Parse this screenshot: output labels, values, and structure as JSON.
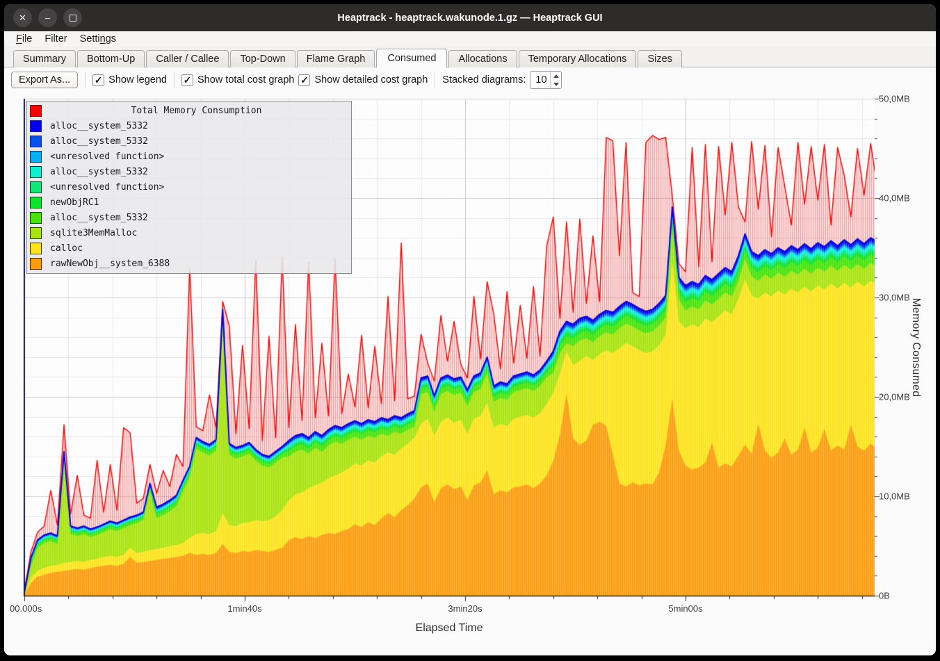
{
  "window": {
    "title": "Heaptrack - heaptrack.wakunode.1.gz — Heaptrack GUI",
    "buttons": [
      {
        "name": "close",
        "glyph": "✕"
      },
      {
        "name": "minimize",
        "glyph": "–"
      },
      {
        "name": "maximize",
        "glyph": ""
      }
    ]
  },
  "menu": {
    "items": [
      {
        "pre": "",
        "u": "F",
        "rest": "ile"
      },
      {
        "pre": "Filter",
        "u": "",
        "rest": ""
      },
      {
        "pre": "Setti",
        "u": "n",
        "rest": "gs"
      }
    ]
  },
  "tabs": {
    "items": [
      "Summary",
      "Bottom-Up",
      "Caller / Callee",
      "Top-Down",
      "Flame Graph",
      "Consumed",
      "Allocations",
      "Temporary Allocations",
      "Sizes"
    ],
    "active": "Consumed"
  },
  "toolbar": {
    "export_label": "Export As...",
    "checkboxes": [
      {
        "label": "Show legend",
        "checked": true,
        "glyph": "✓"
      },
      {
        "label": "Show total cost graph",
        "checked": true,
        "glyph": "✓"
      },
      {
        "label": "Show detailed cost graph",
        "checked": true,
        "glyph": "✓"
      }
    ],
    "stacked_label": "Stacked diagrams:",
    "stacked_value": "10"
  },
  "chart_data": {
    "type": "area",
    "title": "Total Memory Consumption",
    "xlabel": "Elapsed Time",
    "ylabel": "Memory Consumed",
    "ylim_mb": [
      0,
      50
    ],
    "x_step_s": 3,
    "x_range_s": [
      0,
      390
    ],
    "grid": {
      "x_minor_s": 20,
      "x_major_s": 100,
      "y_minor_mb": 2,
      "y_major_mb": 10
    },
    "legend_position": "top-left",
    "y_ticks": [
      {
        "label": "50,0MB",
        "mb": 50
      },
      {
        "label": "40,0MB",
        "mb": 40
      },
      {
        "label": "30,0MB",
        "mb": 30
      },
      {
        "label": "20,0MB",
        "mb": 20
      },
      {
        "label": "10,0MB",
        "mb": 10
      },
      {
        "label": "0B",
        "mb": 0
      }
    ],
    "x_ticks": [
      {
        "label": "00.000s",
        "s": 0
      },
      {
        "label": "1min40s",
        "s": 100
      },
      {
        "label": "3min20s",
        "s": 200
      },
      {
        "label": "5min00s",
        "s": 300
      }
    ],
    "stack_top_mb": [
      0.3,
      3.8,
      5.6,
      6.1,
      6.3,
      6.0,
      14.5,
      7.0,
      6.8,
      7.0,
      6.7,
      6.9,
      7.2,
      7.5,
      7.3,
      7.6,
      7.9,
      8.1,
      8.4,
      11.3,
      8.9,
      9.2,
      9.6,
      10.1,
      11.6,
      13.0,
      15.9,
      15.5,
      15.2,
      15.7,
      28.8,
      15.3,
      14.9,
      15.1,
      15.4,
      14.7,
      14.2,
      14.0,
      14.5,
      15.0,
      15.6,
      16.1,
      16.3,
      15.9,
      16.5,
      16.1,
      16.7,
      17.1,
      16.9,
      17.3,
      17.6,
      17.3,
      17.7,
      17.5,
      17.9,
      17.7,
      18.1,
      17.9,
      18.3,
      18.6,
      21.9,
      22.1,
      20.1,
      21.9,
      22.2,
      21.8,
      22.0,
      20.7,
      22.1,
      22.4,
      24.0,
      21.1,
      21.5,
      21.3,
      22.1,
      22.3,
      22.5,
      22.2,
      22.7,
      23.6,
      24.6,
      26.6,
      27.6,
      27.3,
      27.9,
      28.1,
      27.7,
      28.3,
      28.7,
      28.5,
      29.1,
      29.6,
      29.3,
      28.9,
      28.6,
      28.8,
      29.4,
      30.2,
      39.1,
      32.0,
      31.2,
      31.6,
      31.3,
      32.2,
      31.8,
      32.4,
      33.0,
      32.6,
      34.2,
      36.4,
      34.6,
      34.2,
      34.8,
      34.4,
      35.0,
      34.6,
      35.2,
      34.8,
      35.4,
      34.9,
      35.5,
      35.1,
      35.7,
      35.2,
      35.8,
      35.3,
      35.9,
      35.4,
      36.0,
      35.6,
      36.2
    ],
    "series": [
      {
        "name": "Total Memory Consumption",
        "color": "#ff0000",
        "type": "total_line",
        "values_mb": [
          0.5,
          4.4,
          6.4,
          7.0,
          10.6,
          7.1,
          17.2,
          8.2,
          12.1,
          8.1,
          7.8,
          13.6,
          8.4,
          13.2,
          8.6,
          16.9,
          16.4,
          9.3,
          9.8,
          13.2,
          10.3,
          12.6,
          11.0,
          14.2,
          13.0,
          33.0,
          17.0,
          16.6,
          20.2,
          16.9,
          29.6,
          27.1,
          16.3,
          25.2,
          16.8,
          33.8,
          15.6,
          26.1,
          15.9,
          34.1,
          16.9,
          27.3,
          17.6,
          33.6,
          17.9,
          25.4,
          18.1,
          33.9,
          18.3,
          22.3,
          19.0,
          26.2,
          18.9,
          25.1,
          19.3,
          30.1,
          19.6,
          35.5,
          19.8,
          20.1,
          26.3,
          23.4,
          21.6,
          28.2,
          23.6,
          27.6,
          23.3,
          21.9,
          30.1,
          23.8,
          31.6,
          28.3,
          22.8,
          30.6,
          23.4,
          29.2,
          23.9,
          31.1,
          24.1,
          35.2,
          38.1,
          27.9,
          37.6,
          28.5,
          37.9,
          29.4,
          36.2,
          29.6,
          46.1,
          45.8,
          34.2,
          45.6,
          30.5,
          30.1,
          45.6,
          46.3,
          45.9,
          46.1,
          40.2,
          33.4,
          32.6,
          45.1,
          33.1,
          45.4,
          33.6,
          45.2,
          38.3,
          45.6,
          39.1,
          37.6,
          45.7,
          38.9,
          45.3,
          36.1,
          45.1,
          41.2,
          37.3,
          45.6,
          39.4,
          45.2,
          39.8,
          45.4,
          37.3,
          45.1,
          42.3,
          38.1,
          45.0,
          40.3,
          45.5,
          41.1,
          45.7
        ]
      },
      {
        "name": "alloc__system_5332",
        "color": "#0000ee",
        "type": "stacked",
        "share_of_upper_band": 0.12
      },
      {
        "name": "alloc__system_5332",
        "color": "#0550f0",
        "type": "stacked",
        "share_of_upper_band": 0.08
      },
      {
        "name": "<unresolved function>",
        "color": "#0aaef5",
        "type": "stacked",
        "share_of_upper_band": 0.06
      },
      {
        "name": "alloc__system_5332",
        "color": "#0cf2cf",
        "type": "stacked",
        "share_of_upper_band": 0.16
      },
      {
        "name": "<unresolved function>",
        "color": "#0ee878",
        "type": "stacked",
        "share_of_upper_band": 0.1
      },
      {
        "name": "newObjRC1",
        "color": "#0ce32a",
        "type": "stacked",
        "share_of_upper_band": 0.14
      },
      {
        "name": "alloc__system_5332",
        "color": "#47e30b",
        "type": "stacked",
        "share_of_upper_band": 0.34
      },
      {
        "name": "sqlite3MemMalloc",
        "color": "#a9e30e",
        "type": "stacked",
        "top_mb": [
          0.2,
          3.0,
          4.8,
          5.3,
          5.5,
          5.2,
          13.7,
          6.2,
          6.0,
          6.2,
          5.9,
          6.1,
          6.4,
          6.7,
          6.5,
          6.8,
          7.1,
          7.3,
          7.6,
          10.5,
          7.8,
          8.1,
          8.5,
          9.0,
          10.5,
          11.9,
          14.8,
          14.4,
          14.1,
          14.6,
          27.7,
          14.2,
          13.8,
          14.0,
          14.3,
          13.6,
          13.1,
          12.9,
          13.4,
          13.9,
          14.0,
          14.5,
          14.7,
          14.3,
          14.9,
          14.5,
          15.1,
          15.5,
          15.3,
          15.7,
          16.0,
          15.7,
          16.1,
          15.9,
          16.3,
          16.1,
          16.5,
          16.3,
          16.7,
          17.0,
          20.3,
          20.5,
          18.5,
          20.3,
          20.6,
          20.2,
          20.4,
          19.1,
          20.5,
          20.8,
          22.4,
          19.5,
          19.9,
          19.7,
          20.5,
          20.7,
          20.9,
          20.6,
          21.1,
          22.0,
          22.4,
          24.4,
          25.4,
          25.1,
          25.7,
          25.9,
          25.5,
          26.1,
          26.5,
          26.3,
          26.9,
          27.4,
          27.1,
          26.7,
          26.4,
          26.6,
          27.2,
          28.0,
          36.9,
          29.8,
          28.7,
          29.1,
          28.8,
          29.7,
          29.3,
          29.9,
          30.5,
          30.1,
          31.7,
          33.9,
          32.1,
          31.7,
          32.3,
          31.9,
          32.5,
          32.1,
          32.7,
          32.3,
          32.9,
          32.4,
          33.0,
          32.6,
          33.2,
          32.7,
          33.3,
          32.8,
          33.4,
          32.9,
          33.5,
          33.1,
          33.7
        ]
      },
      {
        "name": "calloc",
        "color": "#ffe41c",
        "type": "stacked",
        "top_mb": [
          0.2,
          1.8,
          2.5,
          2.8,
          3.0,
          3.1,
          3.3,
          3.4,
          3.5,
          3.4,
          3.6,
          3.7,
          3.9,
          4.0,
          3.9,
          4.1,
          4.8,
          4.3,
          4.4,
          4.6,
          4.7,
          4.8,
          5.0,
          5.1,
          5.3,
          5.8,
          6.2,
          6.3,
          6.2,
          6.5,
          8.3,
          7.1,
          7.0,
          7.3,
          7.4,
          7.6,
          7.5,
          7.6,
          8.0,
          8.6,
          9.6,
          10.2,
          10.4,
          10.8,
          11.1,
          11.4,
          11.8,
          12.1,
          12.4,
          12.8,
          13.3,
          13.1,
          13.6,
          13.4,
          14.0,
          14.4,
          14.2,
          14.8,
          15.3,
          15.9,
          17.3,
          17.8,
          16.1,
          17.5,
          17.9,
          17.4,
          17.7,
          16.3,
          17.8,
          18.1,
          19.4,
          16.9,
          17.3,
          17.1,
          17.8,
          18.0,
          18.2,
          17.9,
          18.4,
          19.3,
          20.4,
          22.3,
          24.6,
          23.2,
          23.6,
          24.1,
          23.7,
          24.3,
          24.7,
          24.4,
          24.9,
          25.4,
          25.1,
          24.7,
          24.4,
          24.6,
          25.2,
          26.3,
          33.5,
          27.6,
          26.9,
          27.3,
          27.0,
          27.9,
          27.5,
          28.1,
          28.7,
          28.3,
          29.9,
          31.8,
          30.2,
          29.9,
          30.5,
          30.1,
          30.7,
          30.3,
          30.9,
          30.5,
          31.1,
          30.6,
          31.2,
          30.8,
          31.4,
          30.9,
          31.5,
          31.0,
          31.6,
          31.1,
          31.7,
          31.3,
          31.9
        ]
      },
      {
        "name": "rawNewObj__system_6388",
        "color": "#ff9d0f",
        "type": "stacked",
        "top_mb": [
          0.1,
          1.3,
          1.9,
          2.1,
          2.3,
          2.4,
          2.5,
          2.6,
          2.7,
          2.6,
          2.8,
          2.9,
          3.0,
          3.1,
          3.0,
          3.2,
          3.9,
          3.3,
          3.4,
          3.5,
          3.6,
          3.7,
          3.8,
          3.9,
          4.0,
          4.3,
          4.1,
          4.2,
          4.1,
          4.3,
          5.2,
          4.4,
          4.3,
          4.5,
          4.4,
          4.6,
          4.5,
          4.4,
          4.6,
          4.8,
          5.6,
          5.9,
          5.7,
          6.0,
          5.8,
          6.1,
          6.3,
          6.2,
          6.5,
          6.7,
          7.2,
          6.9,
          7.4,
          7.1,
          7.8,
          8.3,
          7.9,
          8.6,
          9.1,
          9.8,
          10.9,
          11.3,
          9.4,
          10.8,
          11.2,
          10.7,
          11.0,
          9.6,
          11.1,
          11.4,
          12.6,
          10.2,
          10.6,
          10.4,
          10.9,
          11.0,
          11.2,
          10.8,
          11.3,
          12.1,
          13.6,
          16.2,
          20.3,
          15.8,
          15.2,
          15.6,
          17.2,
          17.5,
          17.1,
          14.2,
          11.3,
          11.0,
          11.4,
          11.1,
          11.3,
          11.2,
          12.4,
          15.2,
          19.8,
          14.6,
          13.1,
          12.7,
          12.9,
          13.4,
          15.4,
          12.9,
          13.3,
          13.0,
          14.1,
          15.2,
          14.3,
          17.3,
          14.6,
          13.9,
          14.4,
          15.8,
          14.2,
          14.7,
          16.9,
          14.4,
          14.9,
          16.8,
          14.6,
          15.1,
          14.7,
          17.2,
          15.0,
          14.6,
          15.3,
          14.8,
          15.1
        ]
      }
    ]
  }
}
